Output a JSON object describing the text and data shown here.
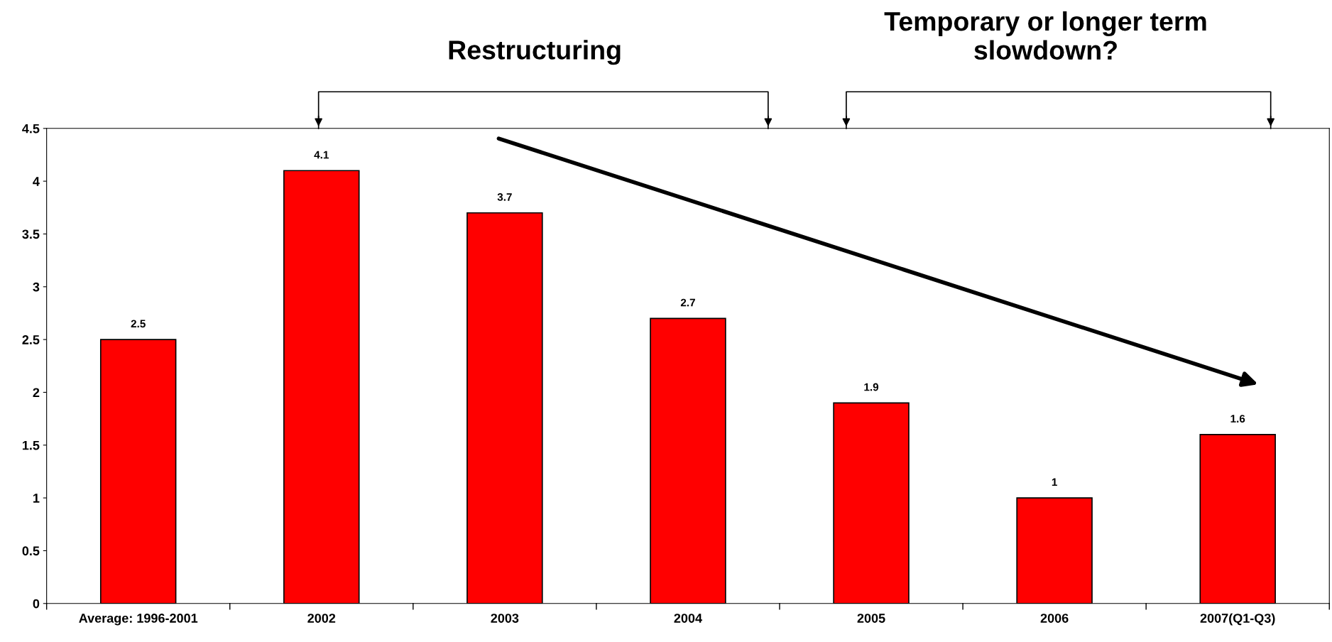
{
  "chart_data": {
    "type": "bar",
    "categories": [
      "Average: 1996-2001",
      "2002",
      "2003",
      "2004",
      "2005",
      "2006",
      "2007(Q1-Q3)"
    ],
    "values": [
      2.5,
      4.1,
      3.7,
      2.7,
      1.9,
      1,
      1.6
    ],
    "color": "#ff0000",
    "ylim": [
      0,
      4.5
    ],
    "yticks": [
      0,
      0.5,
      1,
      1.5,
      2,
      2.5,
      3,
      3.5,
      4,
      4.5
    ],
    "data_labels": true,
    "grid": false,
    "annotations": [
      "Restructuring",
      "Temporary or longer term\nslowdown?"
    ]
  }
}
